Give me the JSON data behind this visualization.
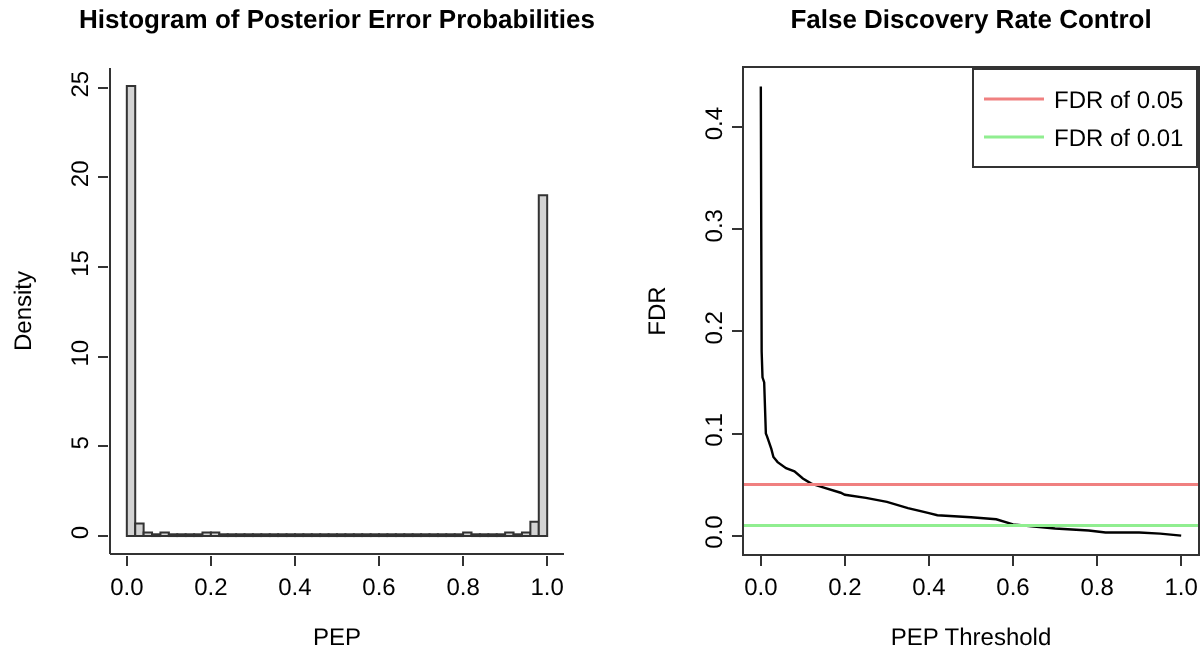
{
  "chart_data": [
    {
      "type": "histogram",
      "title": "Histogram of Posterior Error Probabilities",
      "xlabel": "PEP",
      "ylabel": "Density",
      "color": "#d3d3d3",
      "bins": [
        0,
        0.02,
        0.04,
        0.06,
        0.08,
        0.1,
        0.12,
        0.14,
        0.16,
        0.18,
        0.2,
        0.22,
        0.24,
        0.26,
        0.28,
        0.3,
        0.32,
        0.34,
        0.36,
        0.38,
        0.4,
        0.42,
        0.44,
        0.46,
        0.48,
        0.5,
        0.52,
        0.54,
        0.56,
        0.58,
        0.6,
        0.62,
        0.64,
        0.66,
        0.68,
        0.7,
        0.72,
        0.74,
        0.76,
        0.78,
        0.8,
        0.82,
        0.84,
        0.86,
        0.88,
        0.9,
        0.92,
        0.94,
        0.96,
        0.98,
        1.0
      ],
      "values": [
        25.1,
        0.7,
        0.2,
        0.1,
        0.2,
        0.1,
        0.1,
        0.1,
        0.1,
        0.2,
        0.2,
        0.1,
        0.1,
        0.1,
        0.1,
        0.1,
        0.1,
        0.1,
        0.1,
        0.1,
        0.1,
        0.1,
        0.1,
        0.1,
        0.1,
        0.1,
        0.1,
        0.1,
        0.1,
        0.1,
        0.1,
        0.1,
        0.1,
        0.1,
        0.1,
        0.1,
        0.1,
        0.1,
        0.1,
        0.1,
        0.2,
        0.1,
        0.1,
        0.1,
        0.1,
        0.2,
        0.1,
        0.2,
        0.8,
        19.0
      ],
      "xlim": [
        -0.04,
        1.04
      ],
      "xticks": [
        {
          "value": 0,
          "label": "0.0"
        },
        {
          "value": 0.2,
          "label": "0.2"
        },
        {
          "value": 0.4,
          "label": "0.4"
        },
        {
          "value": 0.6,
          "label": "0.6"
        },
        {
          "value": 0.8,
          "label": "0.8"
        },
        {
          "value": 1,
          "label": "1.0"
        }
      ],
      "ylim": [
        -1.0,
        26.1
      ],
      "yticks": [
        0,
        5,
        10,
        15,
        20,
        25
      ],
      "grid": false
    },
    {
      "type": "line",
      "title": "False Discovery Rate Control",
      "xlabel": "PEP Threshold",
      "ylabel": "FDR",
      "series": [
        {
          "color": "#000000",
          "x": [
            0,
            0.001,
            0.002,
            0.004,
            0.008,
            0.012,
            0.015,
            0.025,
            0.03,
            0.04,
            0.06,
            0.08,
            0.1,
            0.12,
            0.15,
            0.19,
            0.2,
            0.25,
            0.3,
            0.35,
            0.4,
            0.42,
            0.5,
            0.56,
            0.6,
            0.65,
            0.7,
            0.78,
            0.82,
            0.9,
            0.95,
            1.0
          ],
          "values": [
            0.44,
            0.3,
            0.18,
            0.155,
            0.15,
            0.1,
            0.097,
            0.085,
            0.077,
            0.072,
            0.066,
            0.063,
            0.056,
            0.051,
            0.047,
            0.042,
            0.04,
            0.037,
            0.033,
            0.027,
            0.022,
            0.02,
            0.018,
            0.016,
            0.011,
            0.009,
            0.007,
            0.005,
            0.003,
            0.003,
            0.002,
            0.0
          ]
        }
      ],
      "ref_lines": [
        {
          "axis": "y",
          "value": 0.05,
          "label": "FDR of 0.05",
          "color": "#f08080"
        },
        {
          "axis": "y",
          "value": 0.01,
          "label": "FDR of 0.01",
          "color": "#90ee90"
        }
      ],
      "legend": "top right",
      "grid": false,
      "xlim": [
        -0.04,
        1.04
      ],
      "xticks": [
        {
          "value": 0,
          "label": "0.0"
        },
        {
          "value": 0.2,
          "label": "0.2"
        },
        {
          "value": 0.4,
          "label": "0.4"
        },
        {
          "value": 0.6,
          "label": "0.6"
        },
        {
          "value": 0.8,
          "label": "0.8"
        },
        {
          "value": 1,
          "label": "1.0"
        }
      ],
      "ylim": [
        -0.018,
        0.458
      ],
      "yticks": [
        {
          "value": 0,
          "label": "0.0"
        },
        {
          "value": 0.1,
          "label": "0.1"
        },
        {
          "value": 0.2,
          "label": "0.2"
        },
        {
          "value": 0.3,
          "label": "0.3"
        },
        {
          "value": 0.4,
          "label": "0.4"
        }
      ]
    }
  ]
}
